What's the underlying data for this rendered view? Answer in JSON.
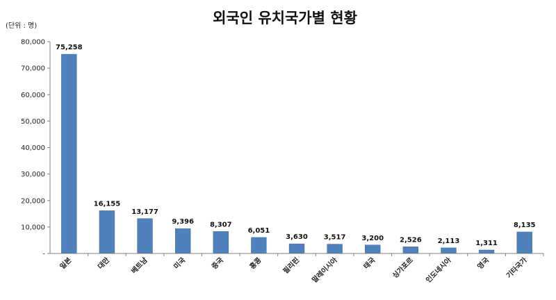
{
  "chart_data": {
    "type": "bar",
    "title": "외국인 유치국가별 현황",
    "unit_label": "(단위 : 명)",
    "categories": [
      "일본",
      "대만",
      "베트남",
      "미국",
      "중국",
      "홍콩",
      "필리핀",
      "말레이시아",
      "태국",
      "싱가포르",
      "인도네시아",
      "영국",
      "기타국가"
    ],
    "values": [
      75258,
      16155,
      13177,
      9396,
      8307,
      6051,
      3630,
      3517,
      3200,
      2526,
      2113,
      1311,
      8135
    ],
    "data_labels": [
      "75,258",
      "16,155",
      "13,177",
      "9,396",
      "8,307",
      "6,051",
      "3,630",
      "3,517",
      "3,200",
      "2,526",
      "2,113",
      "1,311",
      "8,135"
    ],
    "ylim": [
      0,
      80000
    ],
    "yticks": [
      0,
      10000,
      20000,
      30000,
      40000,
      50000,
      60000,
      70000,
      80000
    ],
    "ytick_labels": [
      "-",
      "10,000",
      "20,000",
      "30,000",
      "40,000",
      "50,000",
      "60,000",
      "70,000",
      "80,000"
    ],
    "bar_color": "#4f81bd",
    "grid": false,
    "legend": false
  }
}
